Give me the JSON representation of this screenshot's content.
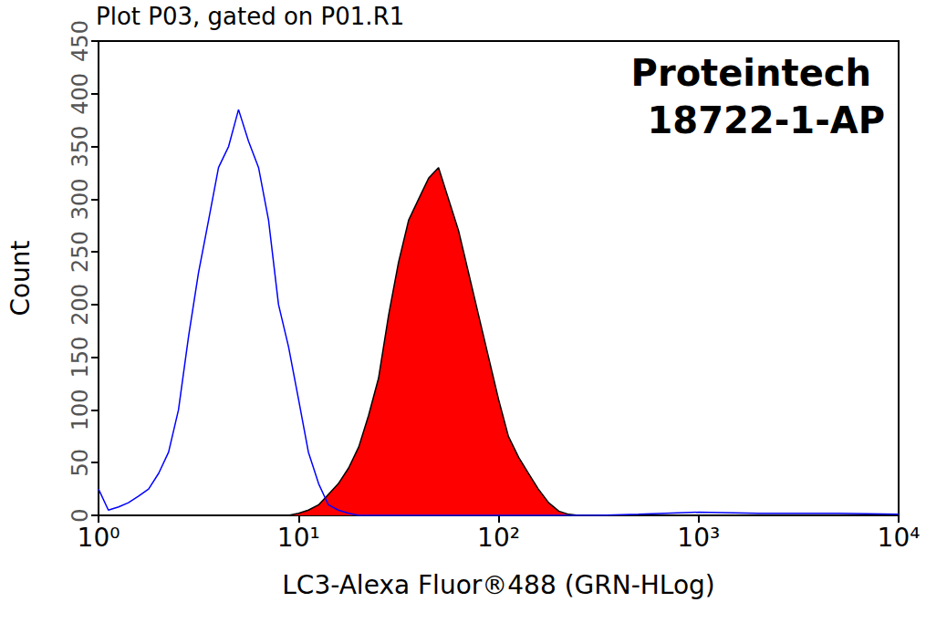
{
  "chart_data": {
    "type": "histogram_overlay",
    "title": "Plot P03, gated on P01.R1",
    "annotations": [
      "Proteintech",
      "18722-1-AP"
    ],
    "x_label": "LC3-Alexa Fluor®488 (GRN-HLog)",
    "y_label": "Count",
    "log": "x",
    "xlim": [
      1,
      10000
    ],
    "xticks": [
      {
        "value": 1,
        "label": "10⁰"
      },
      {
        "value": 10,
        "label": "10¹"
      },
      {
        "value": 100,
        "label": "10²"
      },
      {
        "value": 1000,
        "label": "10³"
      },
      {
        "value": 10000,
        "label": "10⁴"
      }
    ],
    "ylim": [
      0,
      450
    ],
    "yticks": [
      0,
      50,
      100,
      150,
      200,
      250,
      300,
      350,
      400,
      450
    ],
    "x": [
      1,
      1.12,
      1.26,
      1.41,
      1.58,
      1.78,
      2,
      2.24,
      2.51,
      2.82,
      3.16,
      3.55,
      3.98,
      4.47,
      5.01,
      5.62,
      6.31,
      7.08,
      7.94,
      8.91,
      10,
      11.2,
      12.6,
      14.1,
      15.8,
      17.8,
      20,
      22.4,
      25.1,
      28.2,
      31.6,
      35.5,
      39.8,
      44.7,
      50.1,
      56.2,
      63.1,
      70.8,
      79.4,
      89.1,
      100,
      112,
      126,
      141,
      158,
      178,
      200,
      224,
      251,
      282,
      316,
      500,
      1000,
      2000,
      5000,
      10000
    ],
    "series": [
      {
        "type": "line",
        "color": "#0000ff",
        "values": [
          25,
          5,
          8,
          12,
          18,
          25,
          40,
          60,
          100,
          170,
          230,
          280,
          330,
          350,
          385,
          355,
          330,
          280,
          200,
          160,
          110,
          60,
          30,
          10,
          5,
          2,
          0,
          0,
          0,
          0,
          0,
          0,
          0,
          0,
          0,
          0,
          0,
          0,
          0,
          0,
          0,
          0,
          0,
          0,
          0,
          0,
          0,
          0,
          0,
          0,
          0,
          1,
          3,
          2,
          2,
          1
        ]
      },
      {
        "type": "area",
        "color": "#ff0000",
        "values": [
          0,
          0,
          0,
          0,
          0,
          0,
          0,
          0,
          0,
          0,
          0,
          0,
          0,
          0,
          0,
          0,
          0,
          0,
          0,
          0,
          2,
          5,
          10,
          20,
          30,
          45,
          65,
          95,
          130,
          190,
          240,
          280,
          300,
          320,
          330,
          300,
          270,
          230,
          190,
          150,
          110,
          75,
          55,
          40,
          25,
          12,
          4,
          1,
          0,
          0,
          0,
          0,
          0,
          0,
          0,
          0
        ]
      }
    ]
  }
}
